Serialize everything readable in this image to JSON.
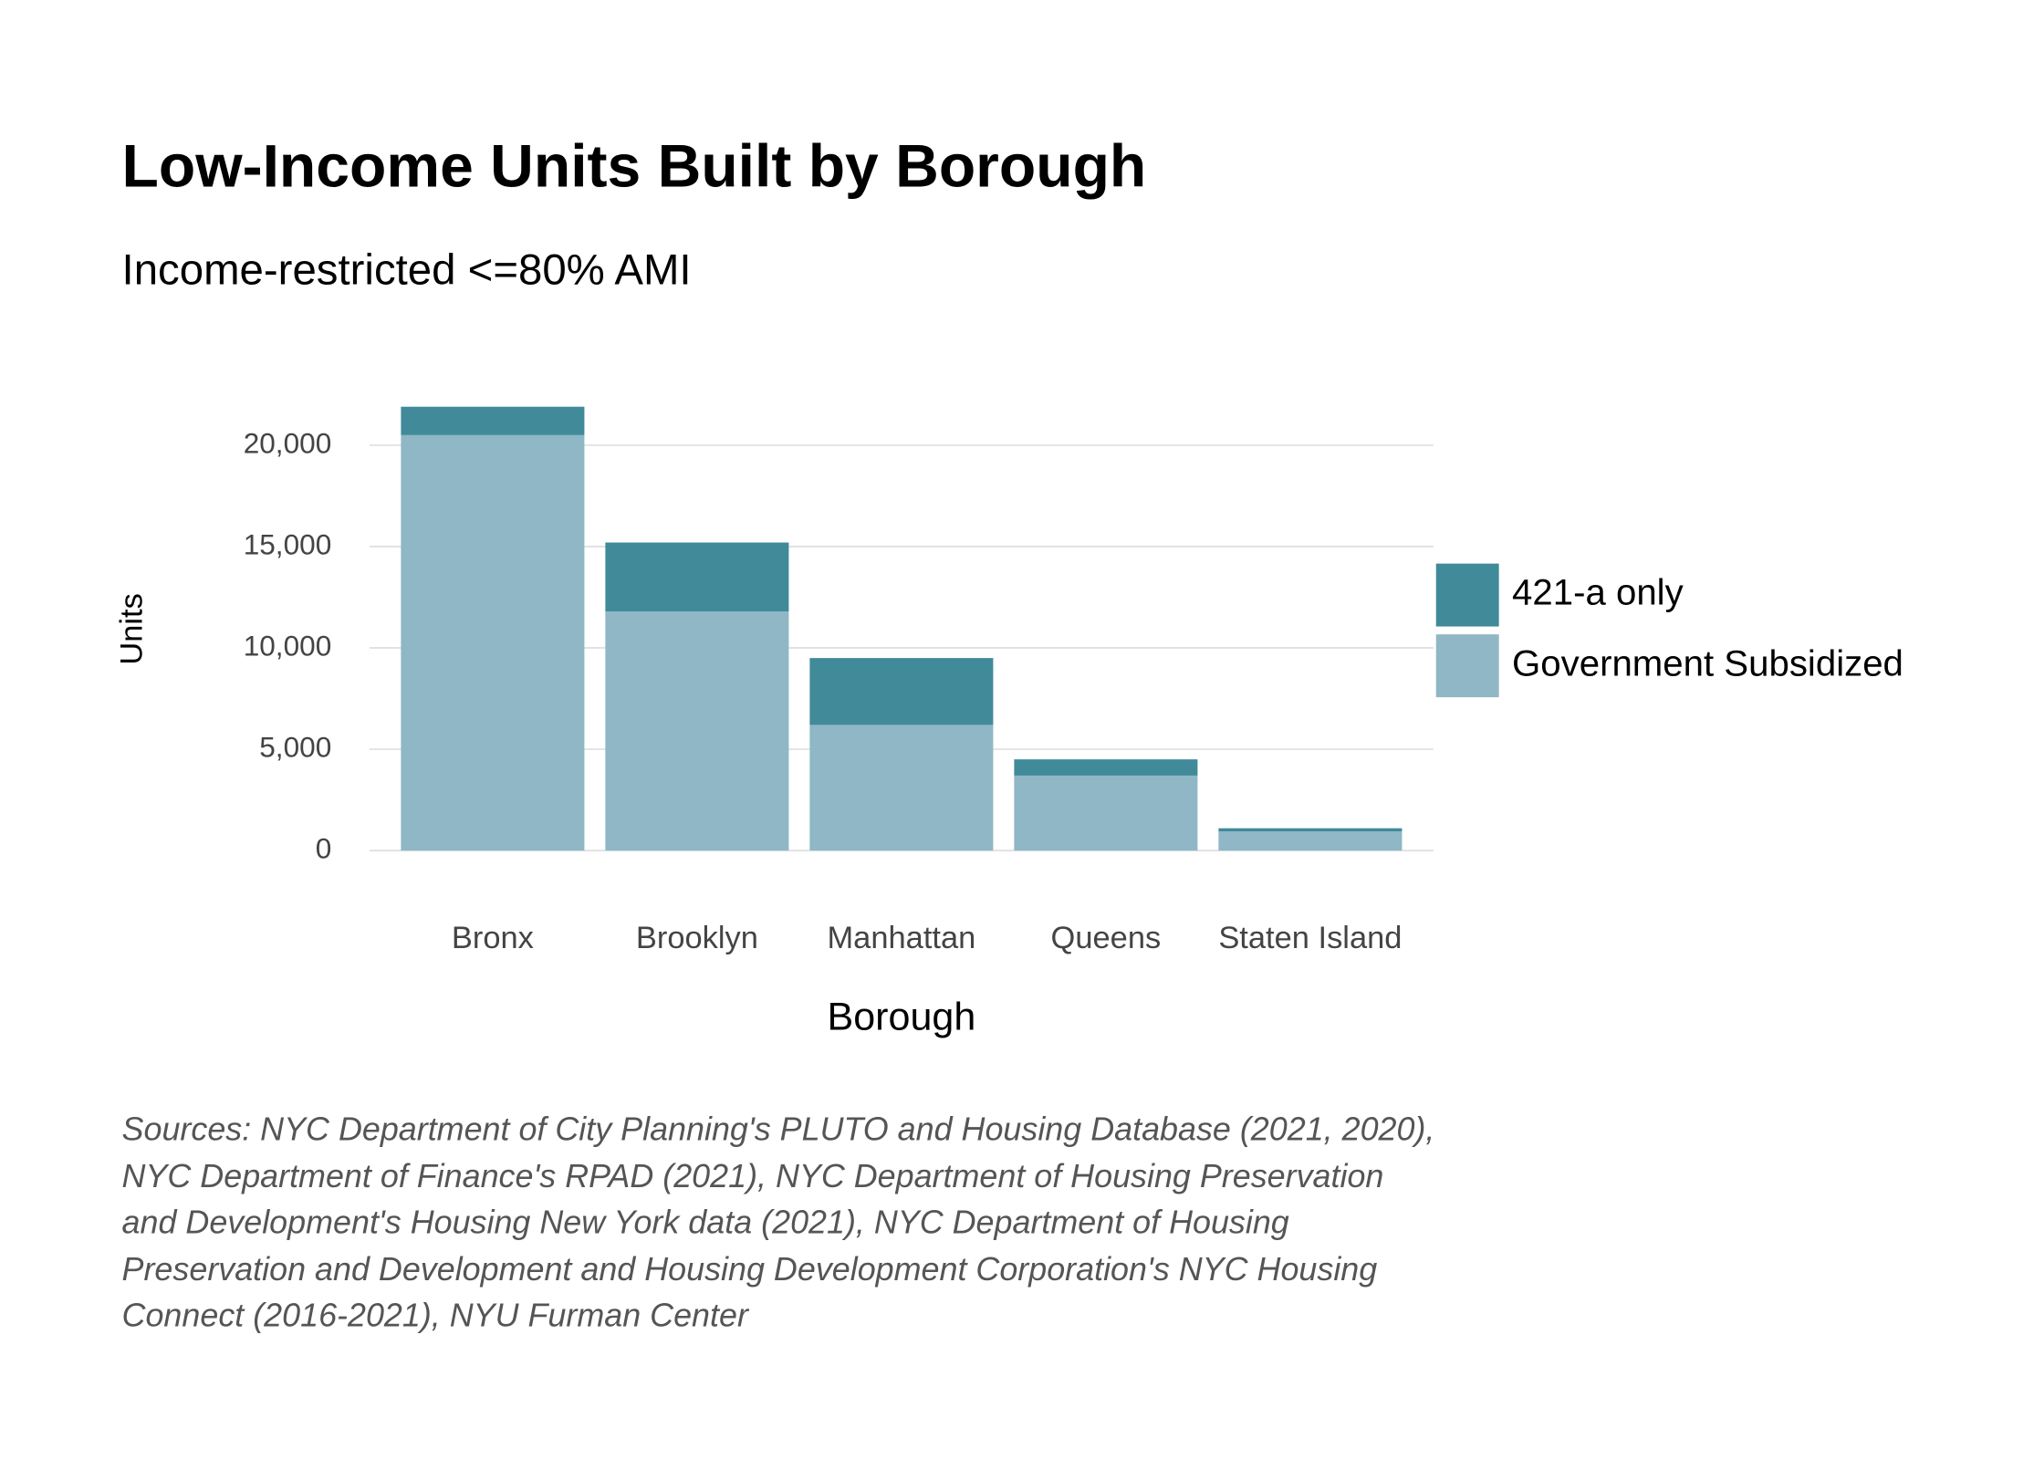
{
  "chart_data": {
    "type": "bar",
    "stacked": true,
    "title": "Low-Income Units Built by Borough",
    "subtitle": "Income-restricted <=80% AMI",
    "x_label": "Borough",
    "y_label": "Units",
    "categories": [
      "Bronx",
      "Brooklyn",
      "Manhattan",
      "Queens",
      "Staten Island"
    ],
    "series": [
      {
        "name": "Government Subsidized",
        "color": "#8fb7c5",
        "values": [
          20500,
          11800,
          6200,
          3700,
          950
        ]
      },
      {
        "name": "421-a only",
        "color": "#418a9a",
        "values": [
          1400,
          3400,
          3300,
          800,
          150
        ]
      }
    ],
    "ylim": [
      0,
      22500
    ],
    "yticks": [
      0,
      {
        "value": 5000,
        "label": "5,000"
      },
      {
        "value": 10000,
        "label": "10,000"
      },
      {
        "value": 15000,
        "label": "15,000"
      },
      {
        "value": 20000,
        "label": "20,000"
      }
    ],
    "grid": true,
    "legend": "right",
    "source": "Sources: NYC Department of City Planning's PLUTO and Housing Database (2021, 2020), NYC Department of Finance's RPAD (2021), NYC Department of Housing Preservation and Development's Housing New York data (2021), NYC Department of Housing Preservation and Development and Housing Development Corporation's NYC Housing Connect (2016-2021), NYU Furman Center"
  }
}
